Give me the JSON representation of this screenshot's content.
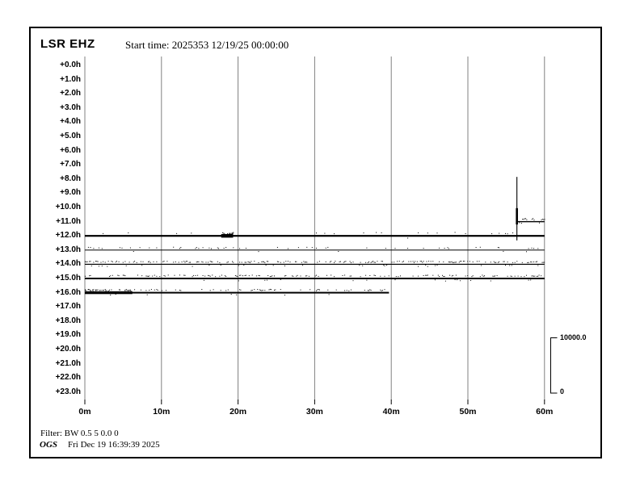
{
  "header": {
    "station": "LSR EHZ",
    "start_time_label": "Start time: 2025353 12/19/25 00:00:00"
  },
  "scale_bar": {
    "max_label": "10000.0",
    "min_label": "0"
  },
  "footer": {
    "filter": "Filter: BW 0.5 5 0.0 0",
    "agency": "OGS",
    "generated": "Fri Dec 19 16:39:39 2025"
  },
  "chart_data": {
    "type": "line",
    "subtype": "helicorder",
    "title": "LSR EHZ",
    "x_axis": {
      "labels": [
        "0m",
        "10m",
        "20m",
        "30m",
        "40m",
        "50m",
        "60m"
      ],
      "minutes": [
        0,
        10,
        20,
        30,
        40,
        50,
        60
      ],
      "range_min": [
        0,
        60
      ],
      "grid": true
    },
    "y_axis": {
      "labels": [
        "+0.0h",
        "+1.0h",
        "+2.0h",
        "+3.0h",
        "+4.0h",
        "+5.0h",
        "+6.0h",
        "+7.0h",
        "+8.0h",
        "+9.0h",
        "+10.0h",
        "+11.0h",
        "+12.0h",
        "+13.0h",
        "+14.0h",
        "+15.0h",
        "+16.0h",
        "+17.0h",
        "+18.0h",
        "+19.0h",
        "+20.0h",
        "+21.0h",
        "+22.0h",
        "+23.0h"
      ],
      "grid": false
    },
    "amplitude_scale": {
      "max": 10000.0,
      "min": 0
    },
    "traces": [
      {
        "hour": 11,
        "start_min": 56.4,
        "end_min": 60,
        "weight": 1.4,
        "noise": 0.55,
        "events": []
      },
      {
        "hour": 12,
        "start_min": 0,
        "end_min": 60,
        "weight": 2.2,
        "noise": 0.05,
        "events": [
          {
            "start_min": 17.8,
            "end_min": 19.35,
            "amp": 2.0
          }
        ]
      },
      {
        "hour": 13,
        "start_min": 0,
        "end_min": 60,
        "weight": 1.0,
        "noise": 0.1,
        "events": []
      },
      {
        "hour": 14,
        "start_min": 0,
        "end_min": 60,
        "weight": 1.2,
        "noise": 0.5,
        "events": []
      },
      {
        "hour": 15,
        "start_min": 0,
        "end_min": 60,
        "weight": 2.0,
        "noise": 0.35,
        "events": []
      },
      {
        "hour": 16,
        "start_min": 0,
        "end_min": 39.7,
        "weight": 2.0,
        "noise": 0.28,
        "events": [
          {
            "start_min": 0,
            "end_min": 6.2,
            "amp": 1.7
          }
        ]
      }
    ],
    "spike": {
      "minute": 56.4,
      "from_hour": 7.85,
      "to_hour": 12.32,
      "thick_from_hour": 10.05,
      "thick_to_hour": 11.2
    },
    "colors": {
      "grid": "#808080",
      "trace": "#000000",
      "background": "#ffffff"
    },
    "legend_position": "none"
  }
}
